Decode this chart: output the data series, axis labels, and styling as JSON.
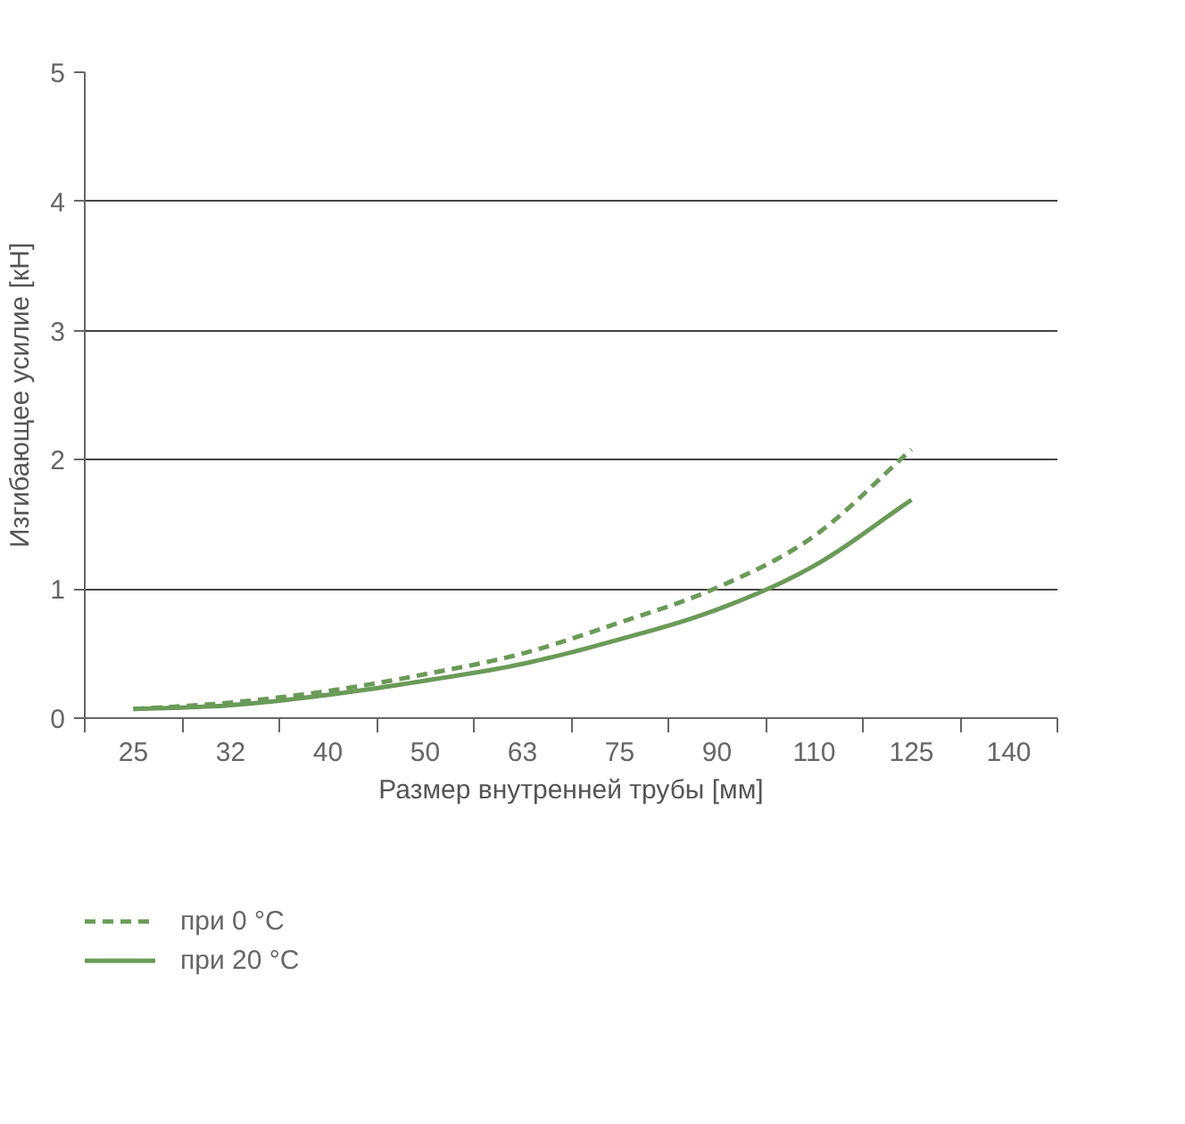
{
  "chart_data": {
    "type": "line",
    "xlabel": "Размер внутренней трубы [мм]",
    "ylabel": "Изгибающее усилие [кН]",
    "categories": [
      "25",
      "32",
      "40",
      "50",
      "63",
      "75",
      "90",
      "110",
      "125",
      "140"
    ],
    "ylim": [
      0,
      5
    ],
    "yticks": [
      0,
      1,
      2,
      3,
      4,
      5
    ],
    "grid": "y",
    "legend": "bottom",
    "series": [
      {
        "name": "при 0 °C",
        "color": "#6a9a58",
        "line_style": "dashed",
        "values": [
          0.07,
          0.12,
          0.21,
          0.34,
          0.5,
          0.74,
          1.01,
          1.41,
          2.08,
          null
        ]
      },
      {
        "name": "при 20 °C",
        "color": "#6a9a58",
        "line_style": "solid",
        "values": [
          0.07,
          0.1,
          0.18,
          0.29,
          0.42,
          0.61,
          0.84,
          1.18,
          1.69,
          null
        ]
      }
    ]
  }
}
